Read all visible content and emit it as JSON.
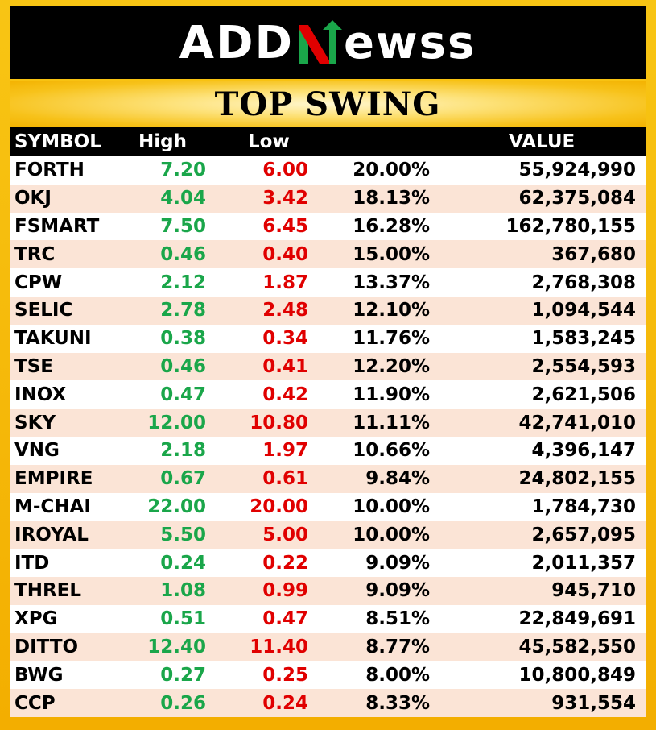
{
  "brand": {
    "logo_left": "ADD",
    "logo_right": "ewss",
    "colors": {
      "green": "#1aa64a",
      "red": "#e00000",
      "gold": "#f5b400"
    }
  },
  "title": "TOP SWING",
  "table": {
    "headers": {
      "symbol": "SYMBOL",
      "high": "High",
      "low": "Low",
      "pct": "",
      "value": "VALUE"
    },
    "rows": [
      {
        "symbol": "FORTH",
        "high": "7.20",
        "low": "6.00",
        "pct": "20.00%",
        "value": "55,924,990"
      },
      {
        "symbol": "OKJ",
        "high": "4.04",
        "low": "3.42",
        "pct": "18.13%",
        "value": "62,375,084"
      },
      {
        "symbol": "FSMART",
        "high": "7.50",
        "low": "6.45",
        "pct": "16.28%",
        "value": "162,780,155"
      },
      {
        "symbol": "TRC",
        "high": "0.46",
        "low": "0.40",
        "pct": "15.00%",
        "value": "367,680"
      },
      {
        "symbol": "CPW",
        "high": "2.12",
        "low": "1.87",
        "pct": "13.37%",
        "value": "2,768,308"
      },
      {
        "symbol": "SELIC",
        "high": "2.78",
        "low": "2.48",
        "pct": "12.10%",
        "value": "1,094,544"
      },
      {
        "symbol": "TAKUNI",
        "high": "0.38",
        "low": "0.34",
        "pct": "11.76%",
        "value": "1,583,245"
      },
      {
        "symbol": "TSE",
        "high": "0.46",
        "low": "0.41",
        "pct": "12.20%",
        "value": "2,554,593"
      },
      {
        "symbol": "INOX",
        "high": "0.47",
        "low": "0.42",
        "pct": "11.90%",
        "value": "2,621,506"
      },
      {
        "symbol": "SKY",
        "high": "12.00",
        "low": "10.80",
        "pct": "11.11%",
        "value": "42,741,010"
      },
      {
        "symbol": "VNG",
        "high": "2.18",
        "low": "1.97",
        "pct": "10.66%",
        "value": "4,396,147"
      },
      {
        "symbol": "EMPIRE",
        "high": "0.67",
        "low": "0.61",
        "pct": "9.84%",
        "value": "24,802,155"
      },
      {
        "symbol": "M-CHAI",
        "high": "22.00",
        "low": "20.00",
        "pct": "10.00%",
        "value": "1,784,730"
      },
      {
        "symbol": "IROYAL",
        "high": "5.50",
        "low": "5.00",
        "pct": "10.00%",
        "value": "2,657,095"
      },
      {
        "symbol": "ITD",
        "high": "0.24",
        "low": "0.22",
        "pct": "9.09%",
        "value": "2,011,357"
      },
      {
        "symbol": "THREL",
        "high": "1.08",
        "low": "0.99",
        "pct": "9.09%",
        "value": "945,710"
      },
      {
        "symbol": "XPG",
        "high": "0.51",
        "low": "0.47",
        "pct": "8.51%",
        "value": "22,849,691"
      },
      {
        "symbol": "DITTO",
        "high": "12.40",
        "low": "11.40",
        "pct": "8.77%",
        "value": "45,582,550"
      },
      {
        "symbol": "BWG",
        "high": "0.27",
        "low": "0.25",
        "pct": "8.00%",
        "value": "10,800,849"
      },
      {
        "symbol": "CCP",
        "high": "0.26",
        "low": "0.24",
        "pct": "8.33%",
        "value": "931,554"
      }
    ]
  }
}
